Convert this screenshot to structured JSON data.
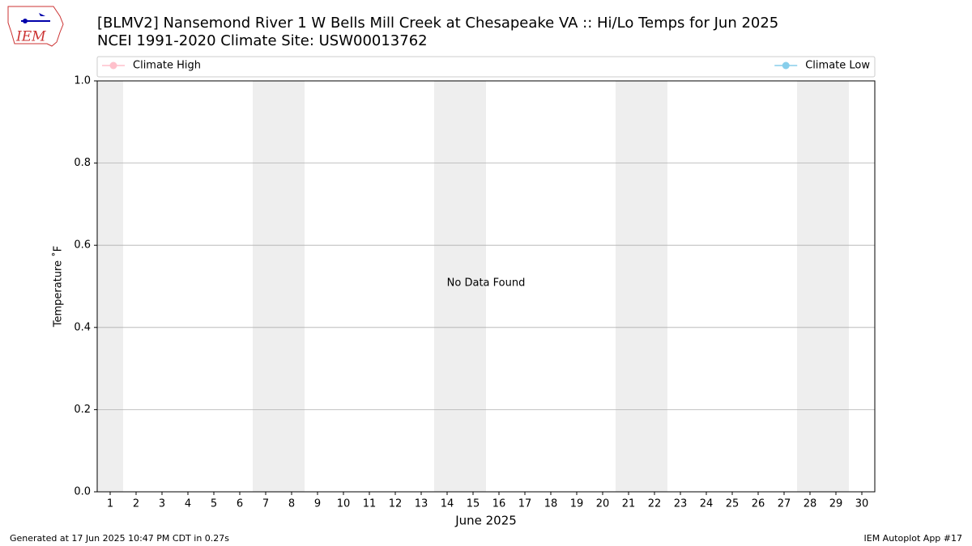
{
  "logo_text": "IEM",
  "chart_data": {
    "type": "line",
    "title": "[BLMV2] Nansemond River 1 W Bells Mill Creek at Chesapeake VA :: Hi/Lo Temps for Jun 2025",
    "subtitle": "NCEI 1991-2020 Climate Site: USW00013762",
    "xlabel": "June 2025",
    "ylabel": "Temperature $^\\circ$F",
    "annotation": "No Data Found",
    "xlim": [
      0.5,
      30.5
    ],
    "xticks": [
      1,
      2,
      3,
      4,
      5,
      6,
      7,
      8,
      9,
      10,
      11,
      12,
      13,
      14,
      15,
      16,
      17,
      18,
      19,
      20,
      21,
      22,
      23,
      24,
      25,
      26,
      27,
      28,
      29,
      30
    ],
    "shaded_days": [
      1,
      7,
      8,
      14,
      15,
      21,
      22,
      28,
      29
    ],
    "ylim": [
      0,
      1
    ],
    "yticks": [
      {
        "value": 0,
        "label": "0.0"
      },
      0.2,
      0.4,
      0.6,
      0.8,
      {
        "value": 1,
        "label": "1.0"
      }
    ],
    "grid": true,
    "legend": "top",
    "series": [
      {
        "name": "Climate High",
        "color": "#ffc0cb",
        "x": [],
        "values": []
      },
      {
        "name": "Climate Low",
        "color": "#87ceeb",
        "x": [],
        "values": []
      }
    ],
    "footer_left": "Generated at 17 Jun 2025 10:47 PM CDT in 0.27s",
    "footer_right": "IEM Autoplot App #17"
  }
}
